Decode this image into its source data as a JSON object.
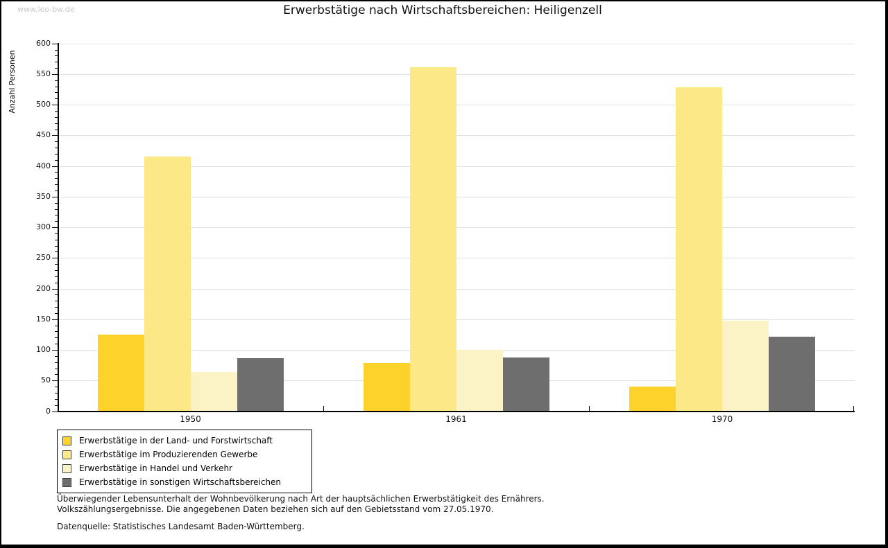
{
  "watermark": "www.leo-bw.de",
  "chart_data": {
    "type": "bar",
    "title": "Erwerbstätige nach Wirtschaftsbereichen: Heiligenzell",
    "xlabel": "",
    "ylabel": "Anzahl Personen",
    "ylim": [
      0,
      600
    ],
    "ytick_major_step": 50,
    "ytick_minor_step": 10,
    "grid": "horizontal-major",
    "legend_position": "bottom-left",
    "categories": [
      "1950",
      "1961",
      "1970"
    ],
    "series": [
      {
        "name": "Erwerbstätige in der Land- und Forstwirtschaft",
        "color": "#fcd22b",
        "values": [
          125,
          79,
          40
        ]
      },
      {
        "name": "Erwerbstätige im Produzierenden Gewerbe",
        "color": "#fce886",
        "values": [
          415,
          561,
          529
        ]
      },
      {
        "name": "Erwerbstätige in Handel und Verkehr",
        "color": "#fbf3c6",
        "values": [
          64,
          100,
          148
        ]
      },
      {
        "name": "Erwerbstätige in sonstigen Wirtschaftsbereichen",
        "color": "#6e6e6e",
        "values": [
          86,
          88,
          122
        ]
      }
    ],
    "colors": {
      "grid": "#e0e0e0",
      "axis": "#000000",
      "text": "#111111",
      "watermark": "#c9c9c9"
    }
  },
  "notes": [
    "Überwiegender Lebensunterhalt der Wohnbevölkerung nach Art der hauptsächlichen Erwerbstätigkeit des Ernährers.",
    "Volkszählungsergebnisse. Die angegebenen Daten beziehen sich auf den Gebietsstand vom 27.05.1970."
  ],
  "datasource": "Datenquelle: Statistisches Landesamt Baden-Württemberg."
}
